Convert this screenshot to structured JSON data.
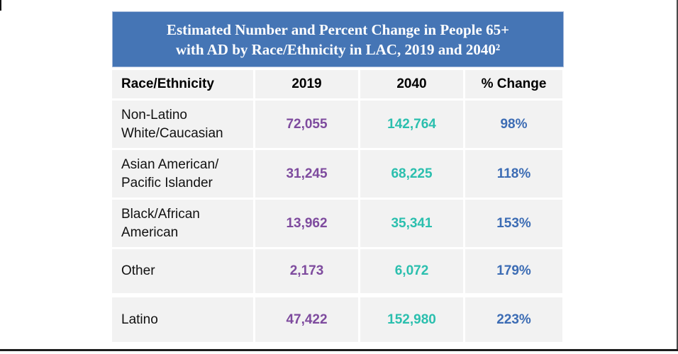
{
  "slide": {
    "background": "#ffffff",
    "frame_color": "#1c1c1c"
  },
  "colors": {
    "banner_bg": "#4575b5",
    "banner_text": "#ffffff",
    "cell_bg": "#f2f2f2",
    "label_text": "#111111",
    "col_2019": "#7e4b9e",
    "col_2040": "#2bbfae",
    "col_change": "#3c6cb4"
  },
  "banner": {
    "title": "Estimated Number and Percent Change in People 65+ with AD by Race/Ethnicity in LAC, 2019 and 2040²",
    "title_lines": [
      "Estimated Number and Percent Change in People 65+",
      "with AD by Race/Ethnicity in LAC, 2019 and 2040²"
    ]
  },
  "table": {
    "columns": [
      "Race/Ethnicity",
      "2019",
      "2040",
      "% Change"
    ],
    "rows": [
      {
        "race": "Non-Latino White/Caucasian",
        "race_lines": [
          "Non-Latino",
          "White/Caucasian"
        ],
        "y2019": "72,055",
        "y2040": "142,764",
        "change": "98%"
      },
      {
        "race": "Asian American/Pacific Islander",
        "race_lines": [
          "Asian American/",
          "Pacific Islander"
        ],
        "y2019": "31,245",
        "y2040": "68,225",
        "change": "118%"
      },
      {
        "race": "Black/African American",
        "race_lines": [
          "Black/African",
          "American"
        ],
        "y2019": "13,962",
        "y2040": "35,341",
        "change": "153%"
      },
      {
        "race": "Other",
        "race_lines": [
          "Other"
        ],
        "y2019": "2,173",
        "y2040": "6,072",
        "change": "179%"
      },
      {
        "race": "Latino",
        "race_lines": [
          "Latino"
        ],
        "y2019": "47,422",
        "y2040": "152,980",
        "change": "223%"
      }
    ]
  },
  "chart_data": {
    "type": "table",
    "title": "Estimated Number and Percent Change in People 65+ with AD by Race/Ethnicity in LAC, 2019 and 2040²",
    "columns": [
      "Race/Ethnicity",
      "2019",
      "2040",
      "% Change"
    ],
    "rows": [
      {
        "race_ethnicity": "Non-Latino White/Caucasian",
        "count_2019": 72055,
        "count_2040": 142764,
        "percent_change": "98%"
      },
      {
        "race_ethnicity": "Asian American/Pacific Islander",
        "count_2019": 31245,
        "count_2040": 68225,
        "percent_change": "118%"
      },
      {
        "race_ethnicity": "Black/African American",
        "count_2019": 13962,
        "count_2040": 35341,
        "percent_change": "153%"
      },
      {
        "race_ethnicity": "Other",
        "count_2019": 2173,
        "count_2040": 6072,
        "percent_change": "179%"
      },
      {
        "race_ethnicity": "Latino",
        "count_2019": 47422,
        "count_2040": 152980,
        "percent_change": "223%"
      }
    ],
    "layout": {
      "value_columns_colored": true,
      "col_2019_color": "#7e4b9e",
      "col_2040_color": "#2bbfae",
      "percent_change_color": "#3c6cb4"
    }
  }
}
